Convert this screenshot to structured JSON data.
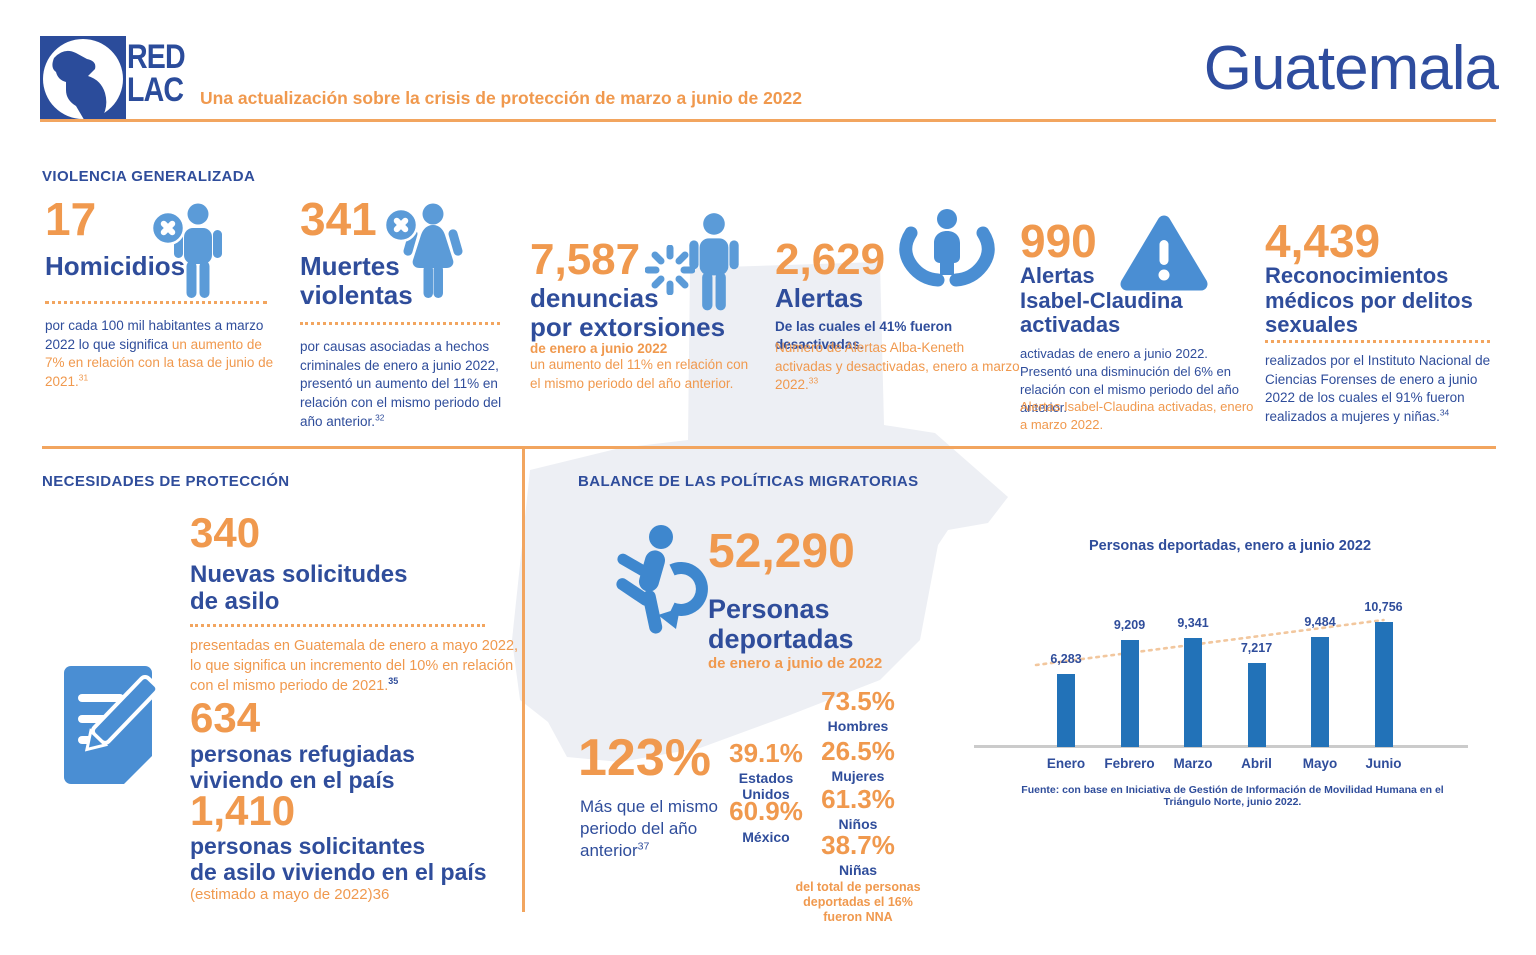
{
  "palette": {
    "orange": "#F0994E",
    "dark_blue": "#2F4D9B",
    "icon_blue": "#4E92D5",
    "bar_blue": "#2272B8",
    "map_gray": "#EDEFF4",
    "axis_gray": "#CBCBCB"
  },
  "header": {
    "logo_line1": "RED",
    "logo_line2": "LAC",
    "subtitle": "Una actualización sobre la crisis de protección de marzo a junio de 2022",
    "country": "Guatemala"
  },
  "violencia": {
    "title": "VIOLENCIA GENERALIZADA",
    "stats": [
      {
        "value": "17",
        "label": "Homicidios",
        "desc_blue": "por cada 100 mil habitantes a marzo 2022 lo que significa ",
        "desc_orange": "un aumento de 7% en relación con la tasa de junio de 2021.",
        "footnote": "31"
      },
      {
        "value": "341",
        "label1": "Muertes",
        "label2": "violentas",
        "desc": "por causas asociadas a hechos criminales de enero a junio 2022, presentó un aumento del 11% en relación con el mismo periodo del año anterior.",
        "footnote": "32"
      },
      {
        "value": "7,587",
        "label1": "denuncias",
        "label2": "por extorsiones",
        "period": "de enero a junio 2022",
        "desc": "un aumento del 11% en relación con el mismo periodo del año anterior."
      },
      {
        "value": "2,629",
        "label": "Alertas",
        "sub": "De las cuales el 41% fueron desactivadas.",
        "desc": "Número de Alertas Alba-Keneth activadas y desactivadas, enero a marzo 2022.",
        "footnote": "33"
      },
      {
        "value": "990",
        "label1": "Alertas",
        "label2": "Isabel-Claudina",
        "label3": "activadas",
        "desc": "activadas de enero a junio 2022.  Presentó una disminución del 6% en relación con el mismo periodo del año anterior.",
        "desc2": "Alertas Isabel-Claudina activadas, enero a marzo 2022."
      },
      {
        "value": "4,439",
        "label1": "Reconocimientos",
        "label2": "médicos por delitos",
        "label3": "sexuales",
        "desc": "realizados por el Instituto Nacional de Ciencias Forenses de enero a junio 2022 de los cuales el 91% fueron realizados a mujeres y niñas.",
        "footnote": "34"
      }
    ]
  },
  "necesidades": {
    "title": "NECESIDADES DE PROTECCIÓN",
    "asilo": {
      "value": "340",
      "label1": "Nuevas solicitudes",
      "label2": "de asilo",
      "desc": "presentadas en Guatemala de enero a mayo 2022, lo que significa un incremento del 10% en relación con el mismo periodo de 2021.",
      "footnote": "35"
    },
    "refugiadas": {
      "value": "634",
      "label1": "personas refugiadas",
      "label2": "viviendo en el país"
    },
    "solicitantes": {
      "value": "1,410",
      "label1": "personas solicitantes",
      "label2": "de asilo viviendo en el país",
      "note": "(estimado a mayo de 2022)36"
    }
  },
  "balance": {
    "title": "BALANCE DE LAS POLÍTICAS MIGRATORIAS",
    "deported": {
      "value": "52,290",
      "label1": "Personas",
      "label2": "deportadas",
      "period": "de enero a junio de 2022"
    },
    "increase": {
      "value": "123%",
      "desc": "Más que el mismo periodo del año anterior",
      "footnote": "37"
    },
    "destinations": [
      {
        "pct": "39.1%",
        "l1": "Estados",
        "l2": "Unidos"
      },
      {
        "pct": "60.9%",
        "l1": "México",
        "l2": ""
      }
    ],
    "demographics": [
      {
        "pct": "73.5%",
        "label": "Hombres"
      },
      {
        "pct": "26.5%",
        "label": "Mujeres"
      },
      {
        "pct": "61.3%",
        "label": "Niños"
      },
      {
        "pct": "38.7%",
        "label": "Niñas"
      }
    ],
    "nna_note": "del total de personas deportadas el 16% fueron NNA"
  },
  "chart_data": {
    "type": "bar",
    "title": "Personas deportadas, enero a junio 2022",
    "categories": [
      "Enero",
      "Febrero",
      "Marzo",
      "Abril",
      "Mayo",
      "Junio"
    ],
    "values": [
      6283,
      9209,
      9341,
      7217,
      9484,
      10756
    ],
    "value_labels": [
      "6,283",
      "9,209",
      "9,341",
      "7,217",
      "9,484",
      "10,756"
    ],
    "ylim": [
      0,
      12000
    ],
    "grid": false,
    "legend": "none",
    "trendline": "dotted ascending",
    "source": "Fuente: con base en Iniciativa de Gestión de Información de Movilidad Humana en el Triángulo Norte, junio 2022."
  }
}
